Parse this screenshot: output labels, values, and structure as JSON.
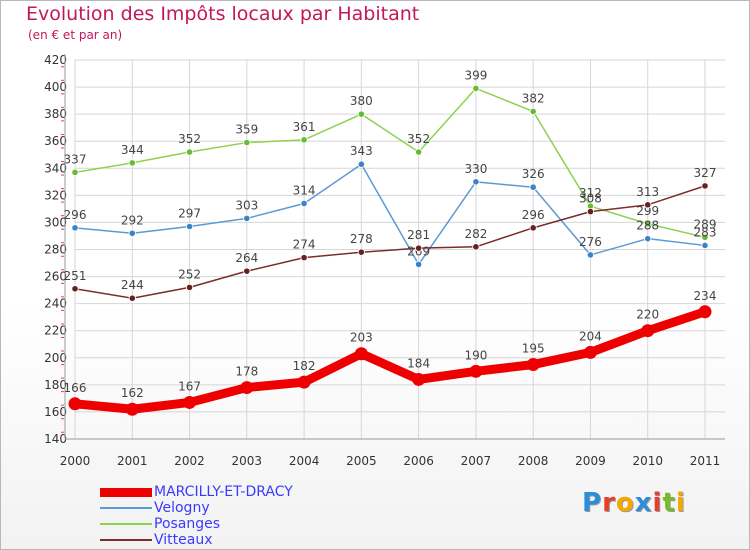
{
  "header": {
    "title": "Evolution des Impôts locaux par Habitant",
    "subtitle": "(en € et par an)"
  },
  "logo": {
    "text": "Proxiti",
    "letters": [
      "P",
      "r",
      "o",
      "x",
      "i",
      "t",
      "i"
    ],
    "colors": [
      "#2a8fd8",
      "#e83e2c",
      "#f5a800",
      "#2a8fd8",
      "#e83e2c",
      "#7cb928",
      "#f5a800"
    ]
  },
  "chart_data": {
    "type": "line",
    "x": [
      "2000",
      "2001",
      "2002",
      "2003",
      "2004",
      "2005",
      "2006",
      "2007",
      "2008",
      "2009",
      "2010",
      "2011"
    ],
    "ylim": [
      140,
      420
    ],
    "yticks": [
      140,
      160,
      180,
      200,
      220,
      240,
      260,
      280,
      300,
      320,
      340,
      360,
      380,
      400,
      420
    ],
    "grid": true,
    "legend_position": "bottom-left",
    "series": [
      {
        "name": "Posanges",
        "color": "#8fd14f",
        "marker": "#66bb33",
        "values": [
          337,
          344,
          352,
          359,
          361,
          380,
          352,
          399,
          382,
          312,
          299,
          289
        ]
      },
      {
        "name": "Velogny",
        "color": "#5b9bd5",
        "marker": "#3c82c8",
        "values": [
          296,
          292,
          297,
          303,
          314,
          343,
          269,
          330,
          326,
          276,
          288,
          283
        ]
      },
      {
        "name": "Vitteaux",
        "color": "#7b2c2c",
        "marker": "#6a1f1f",
        "values": [
          251,
          244,
          252,
          264,
          274,
          278,
          281,
          282,
          296,
          308,
          313,
          327
        ]
      },
      {
        "name": "MARCILLY-ET-DRACY",
        "color": "#ee0000",
        "marker": "#ee0000",
        "values": [
          166,
          162,
          167,
          178,
          182,
          203,
          184,
          190,
          195,
          204,
          220,
          234
        ]
      }
    ],
    "legend_order": [
      "MARCILLY-ET-DRACY",
      "Velogny",
      "Posanges",
      "Vitteaux"
    ]
  }
}
